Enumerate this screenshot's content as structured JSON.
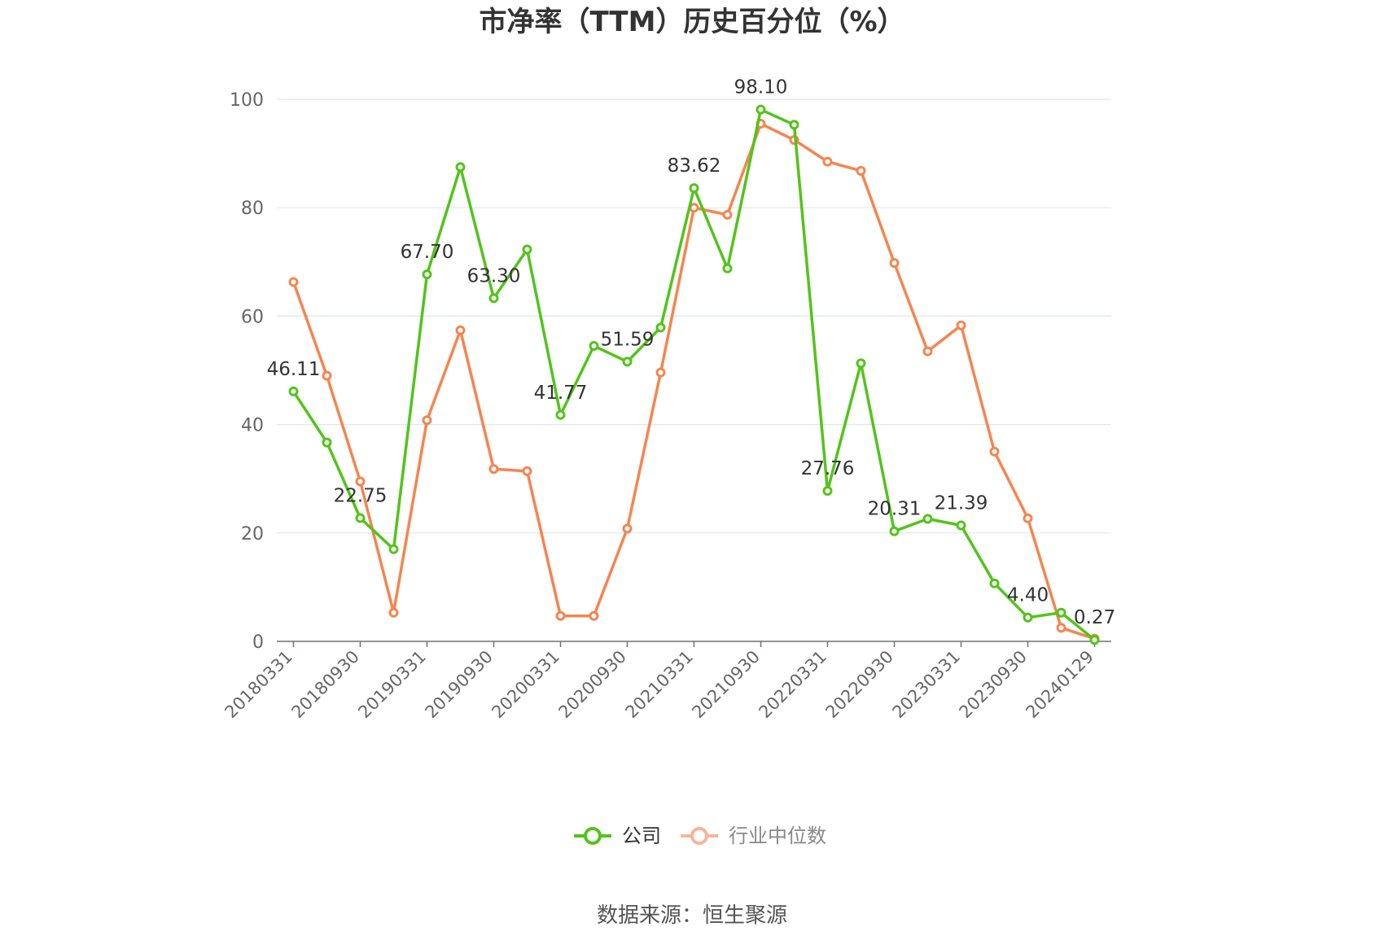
{
  "chart_data": {
    "type": "line",
    "title": "市净率（TTM）历史百分位（%）",
    "ylim": [
      0,
      100
    ],
    "yticks": [
      0,
      20,
      40,
      60,
      80,
      100
    ],
    "grid": true,
    "legend_position": "bottom-center",
    "x": [
      "20180331",
      "20180630",
      "20180930",
      "20181231",
      "20190331",
      "20190630",
      "20190930",
      "20191231",
      "20200331",
      "20200630",
      "20200930",
      "20201231",
      "20210331",
      "20210630",
      "20210930",
      "20211231",
      "20220331",
      "20220630",
      "20220930",
      "20221231",
      "20230331",
      "20230630",
      "20230930",
      "20231231",
      "20240129"
    ],
    "xtick_labels": [
      "20180331",
      "20180930",
      "20190331",
      "20190930",
      "20200331",
      "20200930",
      "20210331",
      "20210930",
      "20220331",
      "20220930",
      "20230331",
      "20230930",
      "20240129"
    ],
    "series": [
      {
        "name": "公司",
        "color": "#52c41a",
        "values": [
          46.11,
          36.7,
          22.75,
          17.0,
          67.7,
          87.5,
          63.3,
          72.3,
          41.77,
          54.5,
          51.59,
          57.9,
          83.62,
          68.8,
          98.1,
          95.3,
          27.76,
          51.3,
          20.31,
          22.6,
          21.39,
          10.7,
          4.4,
          5.3,
          0.27
        ],
        "labels": [
          "46.11",
          null,
          "22.75",
          null,
          "67.70",
          null,
          "63.30",
          null,
          "41.77",
          null,
          "51.59",
          null,
          "83.62",
          null,
          "98.10",
          null,
          "27.76",
          null,
          "20.31",
          null,
          "21.39",
          null,
          "4.40",
          null,
          "0.27"
        ]
      },
      {
        "name": "行业中位数",
        "color": "#f5854f",
        "values": [
          66.3,
          49.0,
          29.5,
          5.3,
          40.8,
          57.4,
          31.8,
          31.4,
          4.7,
          4.7,
          20.8,
          49.6,
          80.0,
          78.7,
          95.5,
          92.5,
          88.5,
          86.8,
          69.8,
          53.5,
          58.3,
          35.0,
          22.7,
          2.5,
          0.5
        ]
      }
    ]
  },
  "legend": {
    "company": "公司",
    "industry": "行业中位数"
  },
  "source_text": "数据来源：恒生聚源"
}
